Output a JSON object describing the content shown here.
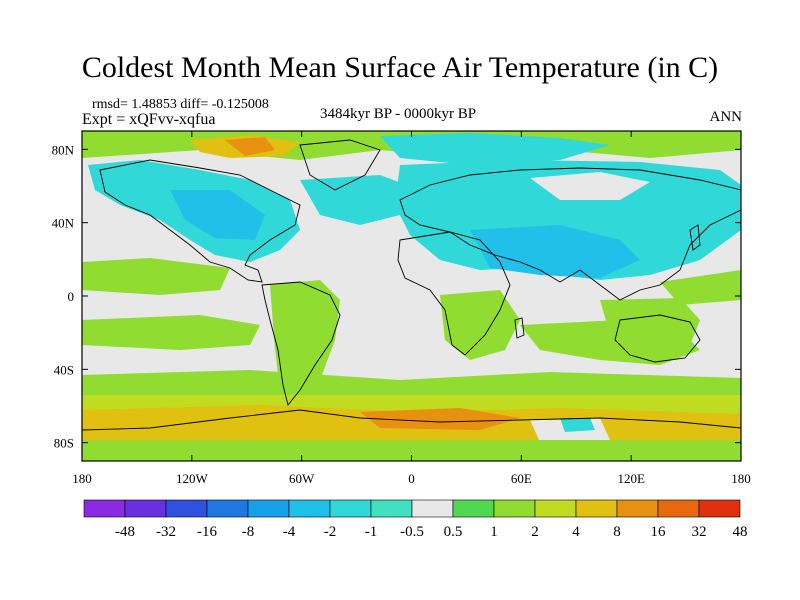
{
  "title": "Coldest Month Mean Surface Air Temperature (in C)",
  "stats_line": "rmsd= 1.48853  diff= -0.125008",
  "expt_line": "Expt = xQFvv-xqfua",
  "period_line": "3484kyr BP - 0000kyr BP",
  "season_label": "ANN",
  "map": {
    "projection": "cylindrical equidistant",
    "lon_range": [
      -180,
      180
    ],
    "lat_range": [
      -90,
      90
    ],
    "x_ticks": [
      {
        "lon": -180,
        "label": "180"
      },
      {
        "lon": -120,
        "label": "120W"
      },
      {
        "lon": -60,
        "label": "60W"
      },
      {
        "lon": 0,
        "label": "0"
      },
      {
        "lon": 60,
        "label": "60E"
      },
      {
        "lon": 120,
        "label": "120E"
      },
      {
        "lon": 180,
        "label": "180"
      }
    ],
    "y_ticks": [
      {
        "lat": 80,
        "label": "80N"
      },
      {
        "lat": 40,
        "label": "40N"
      },
      {
        "lat": 0,
        "label": "0"
      },
      {
        "lat": -40,
        "label": "40S"
      },
      {
        "lat": -80,
        "label": "80S"
      }
    ],
    "background_color": "#e8e8e8"
  },
  "colorbar": {
    "colors": [
      "#8a2be2",
      "#6a2fe0",
      "#3050e0",
      "#1e78e0",
      "#18a0e8",
      "#20c0e8",
      "#30d8d8",
      "#40e0c0",
      "#e8e8e8",
      "#50d850",
      "#90dc30",
      "#c0dc20",
      "#e0c010",
      "#e89010",
      "#e86810",
      "#e03010"
    ],
    "labels": [
      "-48",
      "-32",
      "-16",
      "-8",
      "-4",
      "-2",
      "-1",
      "-0.5",
      "0.5",
      "1",
      "2",
      "4",
      "8",
      "16",
      "32",
      "48"
    ]
  }
}
